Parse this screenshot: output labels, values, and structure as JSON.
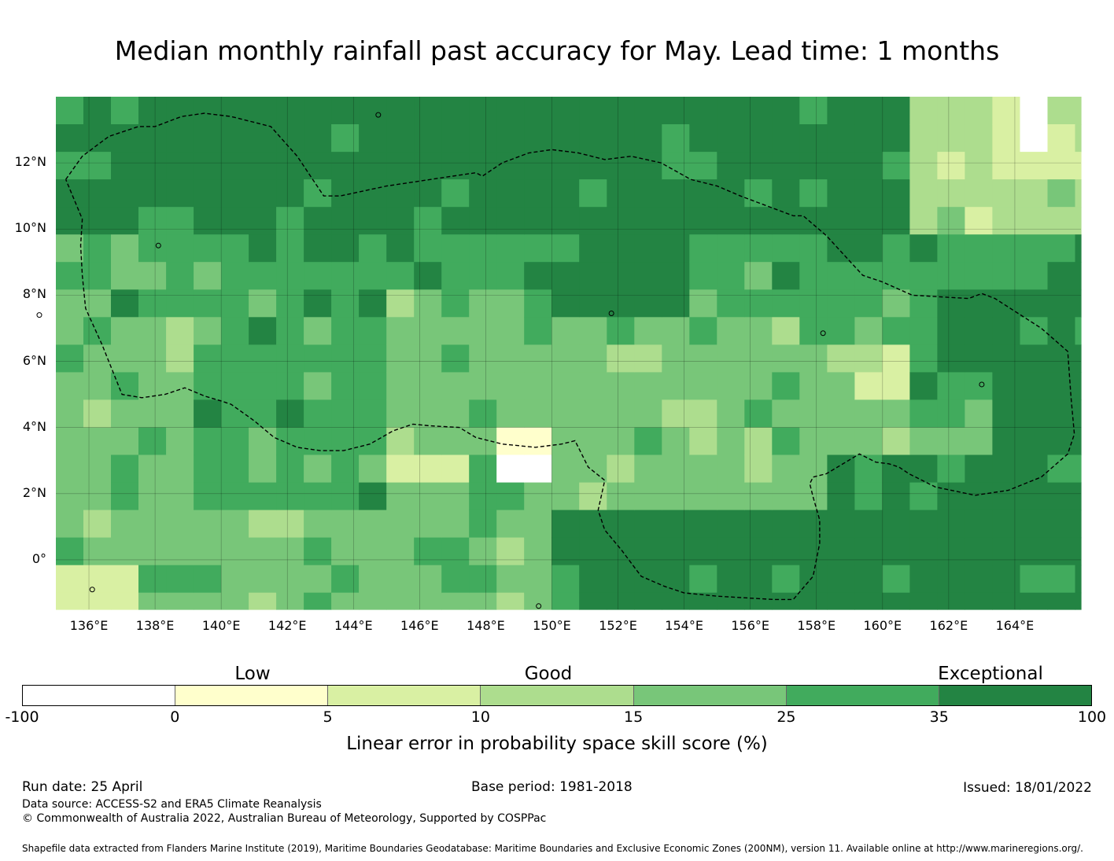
{
  "title": "Median monthly rainfall past accuracy for May. Lead time: 1 months",
  "map": {
    "lon_min": 135,
    "lon_max": 166,
    "lat_min": -1.5,
    "lat_max": 14,
    "lat_labels": [
      {
        "lat": 12,
        "text": "12°N"
      },
      {
        "lat": 10,
        "text": "10°N"
      },
      {
        "lat": 8,
        "text": "8°N"
      },
      {
        "lat": 6,
        "text": "6°N"
      },
      {
        "lat": 4,
        "text": "4°N"
      },
      {
        "lat": 2,
        "text": "2°N"
      },
      {
        "lat": 0,
        "text": "0°"
      }
    ],
    "lon_labels": [
      {
        "lon": 136,
        "text": "136°E"
      },
      {
        "lon": 138,
        "text": "138°E"
      },
      {
        "lon": 140,
        "text": "140°E"
      },
      {
        "lon": 142,
        "text": "142°E"
      },
      {
        "lon": 144,
        "text": "144°E"
      },
      {
        "lon": 146,
        "text": "146°E"
      },
      {
        "lon": 148,
        "text": "148°E"
      },
      {
        "lon": 150,
        "text": "150°E"
      },
      {
        "lon": 152,
        "text": "152°E"
      },
      {
        "lon": 154,
        "text": "154°E"
      },
      {
        "lon": 156,
        "text": "156°E"
      },
      {
        "lon": 158,
        "text": "158°E"
      },
      {
        "lon": 160,
        "text": "160°E"
      },
      {
        "lon": 162,
        "text": "162°E"
      },
      {
        "lon": 164,
        "text": "164°E"
      }
    ],
    "eez_boundary": [
      [
        135.3,
        11.5
      ],
      [
        135.8,
        12.2
      ],
      [
        136.6,
        12.8
      ],
      [
        137.5,
        13.1
      ],
      [
        138.0,
        13.1
      ],
      [
        138.8,
        13.4
      ],
      [
        139.5,
        13.5
      ],
      [
        140.3,
        13.4
      ],
      [
        141.5,
        13.1
      ],
      [
        142.3,
        12.2
      ],
      [
        143.1,
        11.0
      ],
      [
        143.6,
        11.0
      ],
      [
        145.0,
        11.3
      ],
      [
        147.0,
        11.6
      ],
      [
        147.7,
        11.7
      ],
      [
        147.9,
        11.6
      ],
      [
        148.5,
        12.0
      ],
      [
        149.3,
        12.3
      ],
      [
        150.0,
        12.4
      ],
      [
        150.8,
        12.3
      ],
      [
        151.6,
        12.1
      ],
      [
        152.4,
        12.2
      ],
      [
        153.3,
        12.0
      ],
      [
        154.2,
        11.5
      ],
      [
        155.0,
        11.3
      ],
      [
        155.7,
        11.0
      ],
      [
        156.5,
        10.7
      ],
      [
        157.3,
        10.4
      ],
      [
        157.6,
        10.4
      ],
      [
        158.3,
        9.8
      ],
      [
        159.4,
        8.6
      ],
      [
        160.0,
        8.4
      ],
      [
        160.9,
        8.0
      ],
      [
        162.6,
        7.9
      ],
      [
        163.0,
        8.05
      ],
      [
        163.4,
        7.9
      ],
      [
        164.8,
        7.0
      ],
      [
        165.6,
        6.3
      ],
      [
        165.7,
        4.9
      ],
      [
        165.8,
        3.8
      ],
      [
        165.6,
        3.2
      ],
      [
        164.8,
        2.5
      ],
      [
        163.8,
        2.1
      ],
      [
        162.8,
        1.95
      ],
      [
        161.6,
        2.2
      ],
      [
        160.8,
        2.6
      ],
      [
        160.5,
        2.8
      ],
      [
        160.2,
        2.9
      ],
      [
        159.8,
        2.95
      ],
      [
        159.3,
        3.2
      ],
      [
        158.8,
        2.9
      ],
      [
        158.3,
        2.6
      ],
      [
        157.9,
        2.5
      ],
      [
        157.8,
        2.3
      ],
      [
        157.9,
        1.9
      ],
      [
        158.1,
        1.2
      ],
      [
        158.1,
        0.5
      ],
      [
        157.9,
        -0.5
      ],
      [
        157.3,
        -1.2
      ],
      [
        156.7,
        -1.2
      ],
      [
        155.0,
        -1.1
      ],
      [
        154.0,
        -1.0
      ],
      [
        153.4,
        -0.8
      ],
      [
        152.7,
        -0.5
      ],
      [
        152.1,
        0.3
      ],
      [
        151.6,
        0.9
      ],
      [
        151.4,
        1.5
      ],
      [
        151.6,
        2.4
      ],
      [
        151.1,
        2.8
      ],
      [
        150.7,
        3.6
      ],
      [
        150.3,
        3.5
      ],
      [
        149.5,
        3.4
      ],
      [
        148.5,
        3.5
      ],
      [
        147.7,
        3.7
      ],
      [
        147.2,
        4.0
      ],
      [
        146.3,
        4.05
      ],
      [
        145.8,
        4.1
      ],
      [
        145.2,
        3.9
      ],
      [
        144.5,
        3.5
      ],
      [
        143.7,
        3.3
      ],
      [
        143.0,
        3.3
      ],
      [
        142.3,
        3.4
      ],
      [
        141.6,
        3.7
      ],
      [
        141.0,
        4.2
      ],
      [
        140.3,
        4.7
      ],
      [
        140.0,
        4.8
      ],
      [
        139.5,
        4.95
      ],
      [
        138.9,
        5.2
      ],
      [
        138.3,
        5.0
      ],
      [
        137.6,
        4.9
      ],
      [
        137.0,
        5.0
      ],
      [
        136.4,
        6.5
      ],
      [
        135.9,
        7.6
      ],
      [
        135.8,
        8.6
      ],
      [
        135.75,
        9.5
      ],
      [
        135.8,
        10.3
      ],
      [
        135.3,
        11.5
      ]
    ],
    "islands": [
      {
        "lon": 144.75,
        "lat": 13.45
      },
      {
        "lon": 134.5,
        "lat": 7.4
      },
      {
        "lon": 138.1,
        "lat": 9.5
      },
      {
        "lon": 151.8,
        "lat": 7.45
      },
      {
        "lon": 158.2,
        "lat": 6.85
      },
      {
        "lon": 163.0,
        "lat": 5.3
      },
      {
        "lon": 149.6,
        "lat": -1.4
      },
      {
        "lon": 136.1,
        "lat": -0.9
      }
    ],
    "colors": {
      "lt0": "#ffffff",
      "c0_5": "#ffffcc",
      "c5_10": "#d9f0a3",
      "c10_15": "#addd8e",
      "c15_25": "#78c679",
      "c25_35": "#41ab5d",
      "c35_100": "#238443"
    }
  },
  "legend": {
    "category_low": "Low",
    "category_good": "Good",
    "category_exceptional": "Exceptional",
    "colors": [
      "#ffffff",
      "#ffffcc",
      "#d9f0a3",
      "#addd8e",
      "#78c679",
      "#41ab5d",
      "#238443"
    ],
    "ticks": [
      "-100",
      "0",
      "5",
      "10",
      "15",
      "25",
      "35",
      "100"
    ],
    "label": "Linear error in probability space skill score (%)"
  },
  "footer": {
    "run_date": "Run date: 25 April",
    "base_period": "Base period: 1981-2018",
    "issued": "Issued: 18/01/2022",
    "data_source": "Data source: ACCESS-S2 and ERA5 Climate Reanalysis",
    "copyright": "© Commonwealth of Australia 2022, Australian Bureau of Meteorology, Supported by COSPPac",
    "shapefile": "Shapefile data extracted from Flanders Marine Institute (2019), Maritime Boundaries Geodatabase: Maritime Boundaries and Exclusive Economic Zones (200NM), version 11. Available online at http://www.marineregions.org/."
  }
}
